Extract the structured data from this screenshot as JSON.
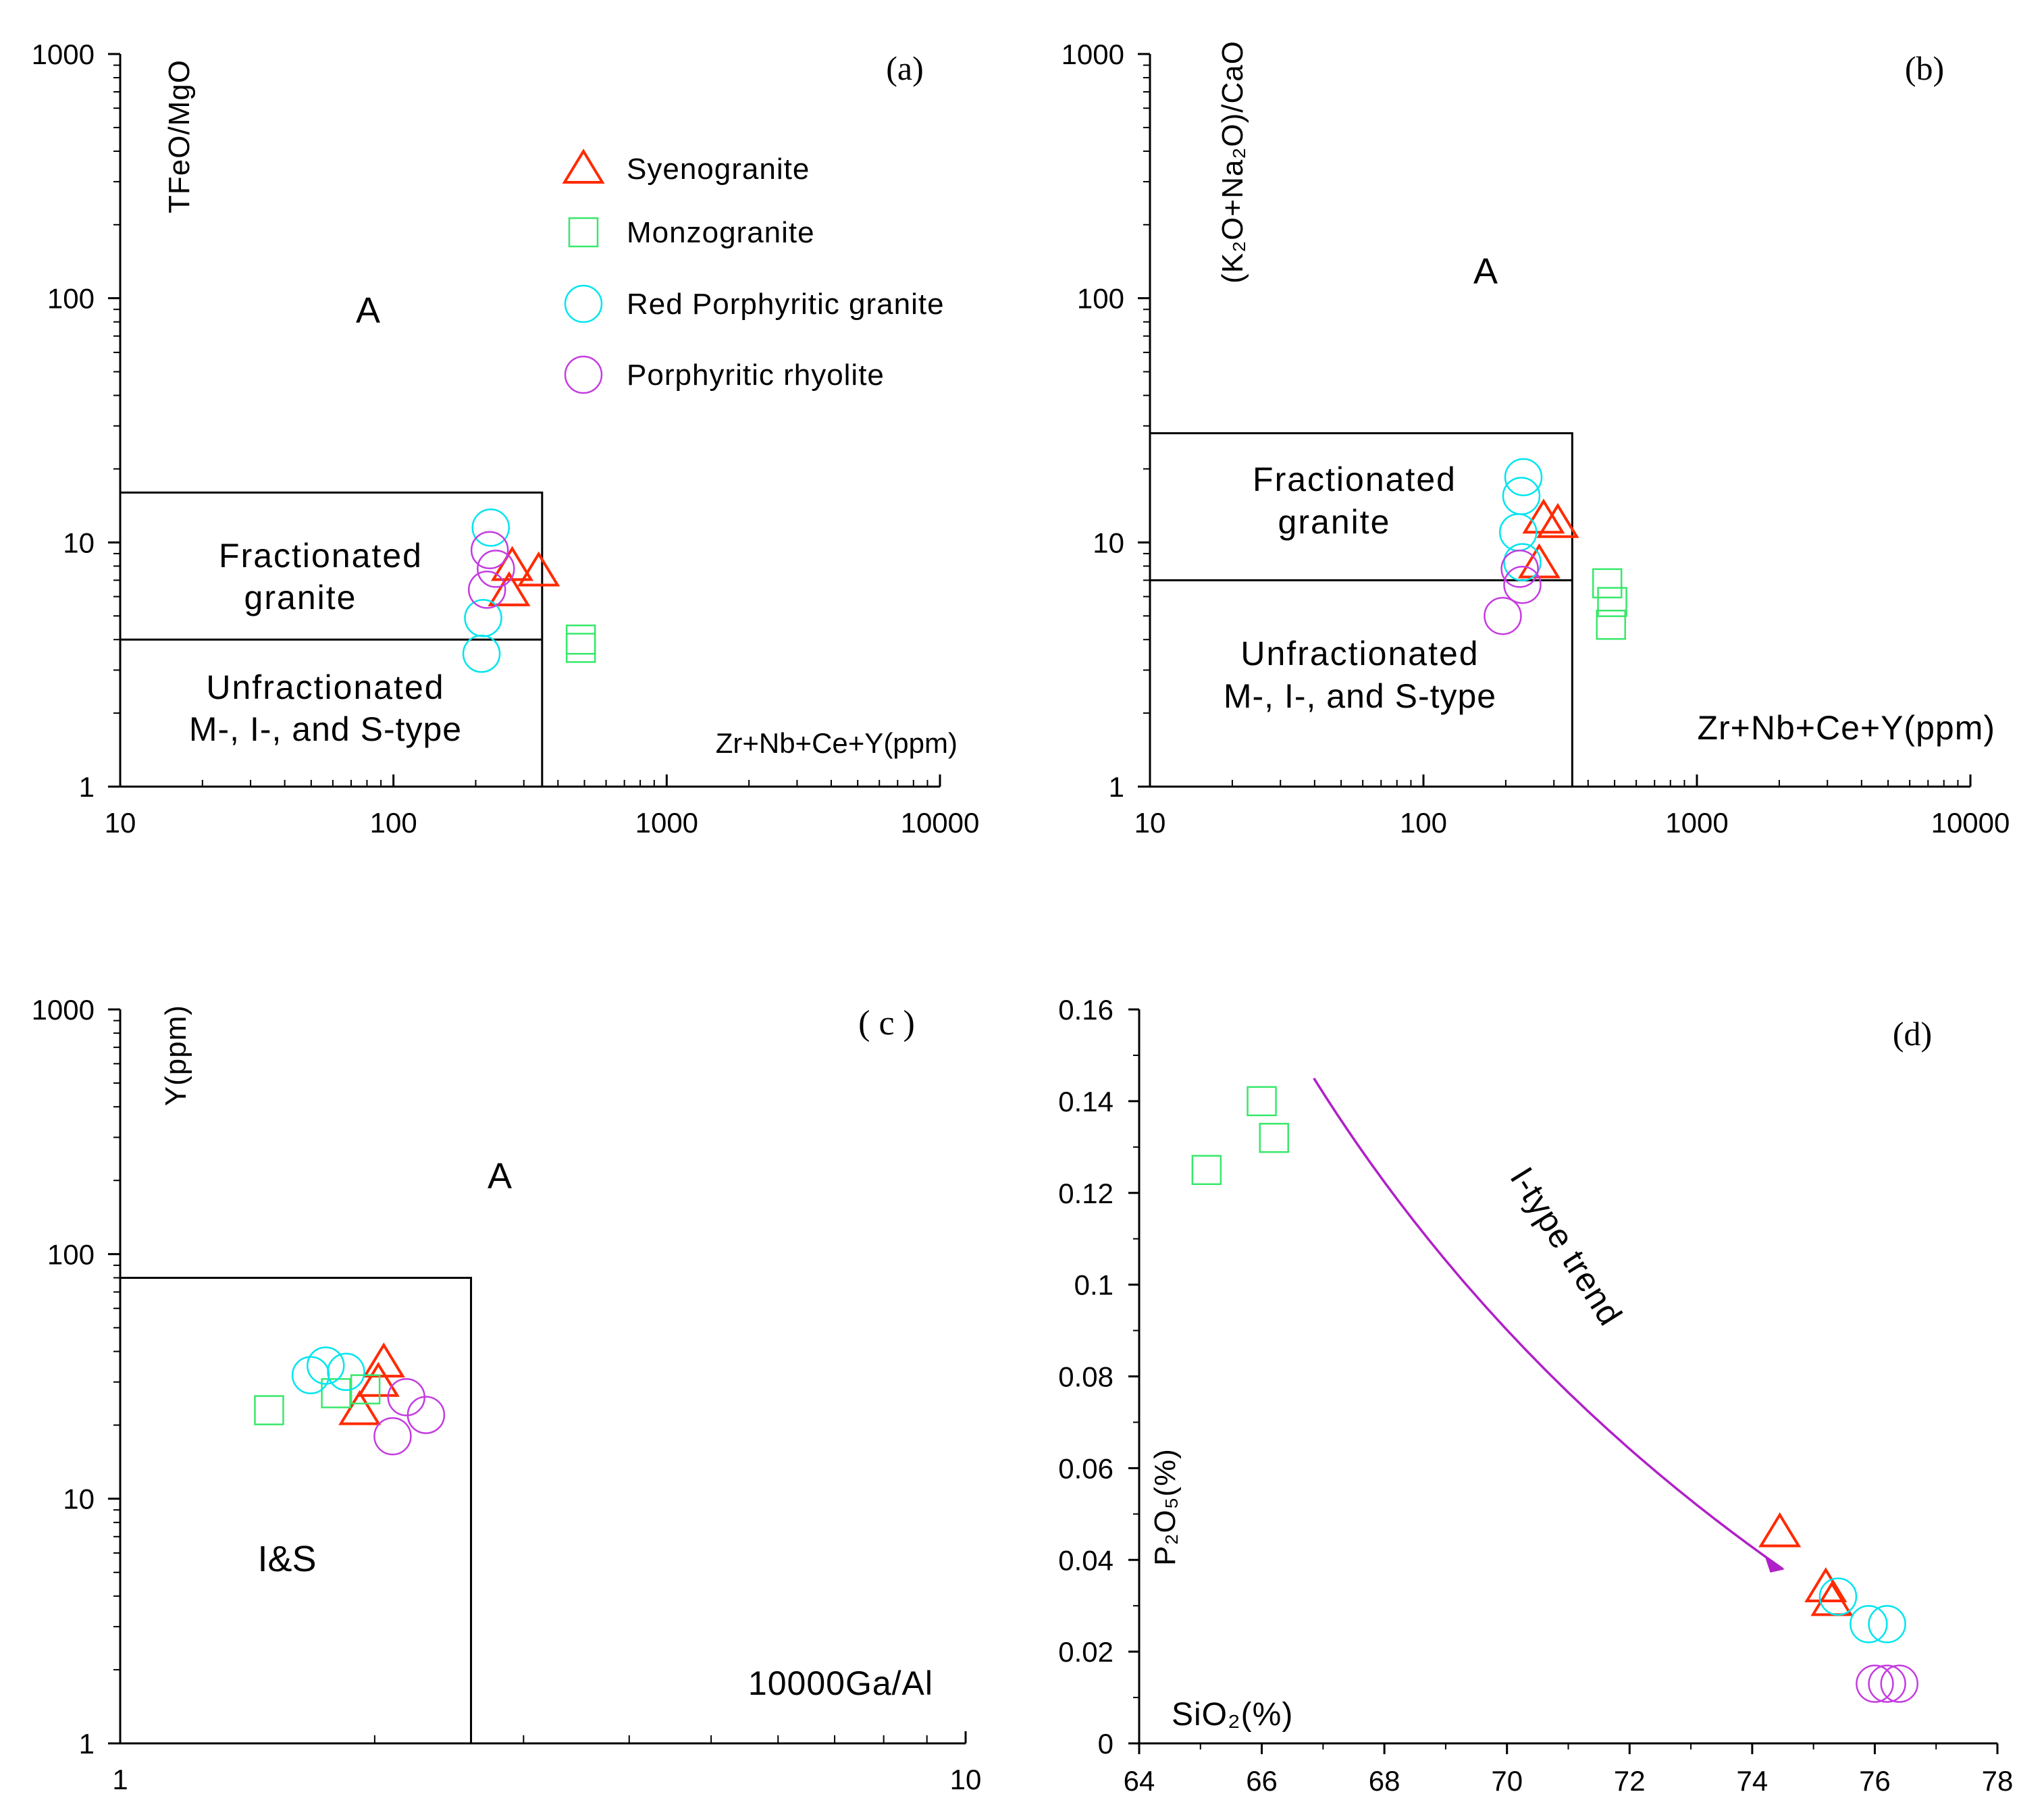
{
  "colors": {
    "syenogranite": "#ff2a00",
    "monzogranite": "#37e86a",
    "red_porphyritic_granite": "#00e5ee",
    "porphyritic_rhyolite": "#c43ce0",
    "trend": "#b020c8"
  },
  "legend": [
    {
      "label": "Syenogranite",
      "marker": "triangle",
      "color": "#ff2a00"
    },
    {
      "label": "Monzogranite",
      "marker": "square",
      "color": "#37e86a"
    },
    {
      "label": "Red Porphyritic granite",
      "marker": "circle",
      "color": "#00e5ee"
    },
    {
      "label": "Porphyritic rhyolite",
      "marker": "circle",
      "color": "#c43ce0"
    }
  ],
  "chart_data": [
    {
      "panel": "(a)",
      "type": "scatter",
      "xscale": "log",
      "yscale": "log",
      "xlim": [
        10,
        10000
      ],
      "ylim": [
        1,
        1000
      ],
      "xticks": [
        "10",
        "100",
        "1000",
        "10000"
      ],
      "yticks": [
        "1",
        "10",
        "100",
        "1000"
      ],
      "xlabel": "Zr+Nb+Ce+Y(ppm)",
      "ylabel": "TFeO/MgO",
      "region_labels": {
        "a": "A",
        "frac1": "Fractionated",
        "frac2": "granite",
        "unfrac1": "Unfractionated",
        "unfrac2": "M-, I-, and S-type"
      },
      "boundaries": {
        "x_max": 350,
        "fractionated_y": [
          4,
          16
        ]
      },
      "series": [
        {
          "name": "Syenogranite",
          "points": [
            [
              272,
              8.0
            ],
            [
              340,
              7.6
            ],
            [
              265,
              6.3
            ]
          ]
        },
        {
          "name": "Monzogranite",
          "points": [
            [
              485,
              4.0
            ],
            [
              485,
              3.7
            ]
          ]
        },
        {
          "name": "Red Porphyritic granite",
          "points": [
            [
              227,
              11.5
            ],
            [
              213,
              4.9
            ],
            [
              210,
              3.5
            ]
          ]
        },
        {
          "name": "Porphyritic rhyolite",
          "points": [
            [
              225,
              9.3
            ],
            [
              237,
              7.8
            ],
            [
              220,
              6.4
            ]
          ]
        }
      ]
    },
    {
      "panel": "(b)",
      "type": "scatter",
      "xscale": "log",
      "yscale": "log",
      "xlim": [
        10,
        10000
      ],
      "ylim": [
        1,
        1000
      ],
      "xticks": [
        "10",
        "100",
        "1000",
        "10000"
      ],
      "yticks": [
        "1",
        "10",
        "100",
        "1000"
      ],
      "xlabel": "Zr+Nb+Ce+Y(ppm)",
      "ylabel": "(K₂O+Na₂O)/CaO",
      "region_labels": {
        "a": "A",
        "frac1": "Fractionated",
        "frac2": "granite",
        "unfrac1": "Unfractionated",
        "unfrac2": "M-, I-, and S-type"
      },
      "boundaries": {
        "x_max": 350,
        "fractionated_y": [
          7,
          28
        ]
      },
      "series": [
        {
          "name": "Syenogranite",
          "points": [
            [
              275,
              12.5
            ],
            [
              310,
              12.0
            ],
            [
              265,
              8.2
            ]
          ]
        },
        {
          "name": "Monzogranite",
          "points": [
            [
              470,
              6.8
            ],
            [
              490,
              5.7
            ],
            [
              485,
              4.6
            ]
          ]
        },
        {
          "name": "Red Porphyritic granite",
          "points": [
            [
              232,
              18.5
            ],
            [
              228,
              15.5
            ],
            [
              222,
              11.0
            ],
            [
              230,
              8.3
            ]
          ]
        },
        {
          "name": "Porphyritic rhyolite",
          "points": [
            [
              225,
              7.8
            ],
            [
              230,
              6.7
            ],
            [
              195,
              5.0
            ]
          ]
        }
      ]
    },
    {
      "panel": "( c )",
      "type": "scatter",
      "xscale": "log",
      "yscale": "log",
      "xlim": [
        1,
        10
      ],
      "ylim": [
        1,
        1000
      ],
      "xticks": [
        "1",
        "10"
      ],
      "yticks": [
        "1",
        "10",
        "100",
        "1000"
      ],
      "xlabel": "10000Ga/Al",
      "ylabel": "Y(ppm)",
      "region_labels": {
        "a": "A",
        "is": "I&S"
      },
      "boundaries": {
        "x_max": 2.6,
        "y_max": 80
      },
      "series": [
        {
          "name": "Syenogranite",
          "points": [
            [
              2.05,
              36
            ],
            [
              2.02,
              30
            ],
            [
              1.92,
              23
            ]
          ]
        },
        {
          "name": "Monzogranite",
          "points": [
            [
              1.5,
              23
            ],
            [
              1.8,
              27
            ],
            [
              1.95,
              28
            ]
          ]
        },
        {
          "name": "Red Porphyritic granite",
          "points": [
            [
              1.68,
              32
            ],
            [
              1.75,
              35
            ],
            [
              1.85,
              33
            ]
          ]
        },
        {
          "name": "Porphyritic rhyolite",
          "points": [
            [
              2.18,
              26
            ],
            [
              2.3,
              22
            ],
            [
              2.1,
              18
            ]
          ]
        }
      ]
    },
    {
      "panel": "(d)",
      "type": "scatter",
      "xscale": "linear",
      "yscale": "linear",
      "xlim": [
        64,
        78
      ],
      "ylim": [
        0,
        0.16
      ],
      "xticks": [
        "64",
        "66",
        "68",
        "70",
        "72",
        "74",
        "76",
        "78"
      ],
      "yticks": [
        "0",
        "0.02",
        "0.04",
        "0.06",
        "0.08",
        "0.1",
        "0.12",
        "0.14",
        "0.16"
      ],
      "xlabel": "SiO₂(%)",
      "ylabel": "P₂O₅(%)",
      "trend_label": "I-type trend",
      "series": [
        {
          "name": "Syenogranite",
          "points": [
            [
              74.45,
              0.046
            ],
            [
              75.2,
              0.034
            ],
            [
              75.3,
              0.031
            ]
          ]
        },
        {
          "name": "Monzogranite",
          "points": [
            [
              65.1,
              0.125
            ],
            [
              66.0,
              0.14
            ],
            [
              66.2,
              0.132
            ]
          ]
        },
        {
          "name": "Red Porphyritic granite",
          "points": [
            [
              75.4,
              0.032
            ],
            [
              75.9,
              0.026
            ],
            [
              76.2,
              0.026
            ]
          ]
        },
        {
          "name": "Porphyritic rhyolite",
          "points": [
            [
              76.0,
              0.013
            ],
            [
              76.2,
              0.013
            ],
            [
              76.4,
              0.013
            ]
          ]
        }
      ]
    }
  ]
}
